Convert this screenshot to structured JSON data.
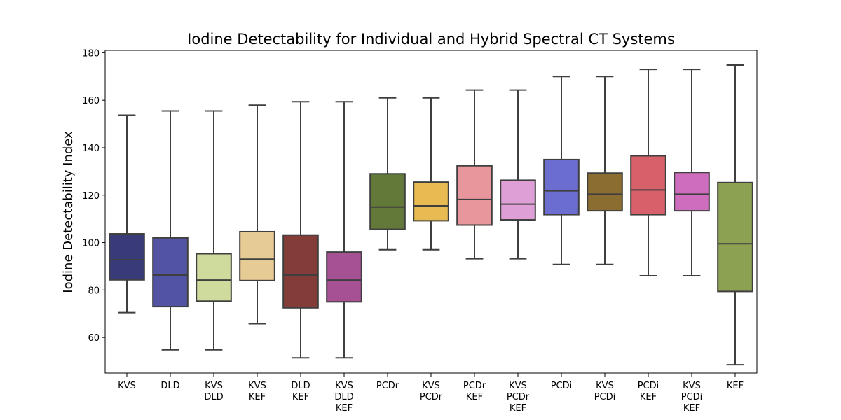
{
  "chart_data": {
    "type": "box",
    "title": "Iodine Detectability for Individual and Hybrid Spectral CT Systems",
    "xlabel": "",
    "ylabel": "Iodine Detectability Index",
    "ylim": [
      45,
      181
    ],
    "yticks": [
      60,
      80,
      100,
      120,
      140,
      160,
      180
    ],
    "grid": false,
    "boxes": [
      {
        "label": [
          "KVS"
        ],
        "whislo": 70.5,
        "q1": 84.3,
        "med": 92.8,
        "q3": 103.7,
        "whishi": 153.7,
        "color": "#393b79"
      },
      {
        "label": [
          "DLD"
        ],
        "whislo": 54.8,
        "q1": 73.0,
        "med": 86.3,
        "q3": 102.0,
        "whishi": 155.5,
        "color": "#5254a3"
      },
      {
        "label": [
          "KVS",
          "DLD"
        ],
        "whislo": 54.8,
        "q1": 75.3,
        "med": 84.2,
        "q3": 95.3,
        "whishi": 155.5,
        "color": "#cedb9c"
      },
      {
        "label": [
          "KVS",
          "KEF"
        ],
        "whislo": 65.8,
        "q1": 84.0,
        "med": 93.0,
        "q3": 104.6,
        "whishi": 157.9,
        "color": "#e7cb94"
      },
      {
        "label": [
          "DLD",
          "KEF"
        ],
        "whislo": 51.4,
        "q1": 72.5,
        "med": 86.3,
        "q3": 103.2,
        "whishi": 159.4,
        "color": "#843c39"
      },
      {
        "label": [
          "KVS",
          "DLD",
          "KEF"
        ],
        "whislo": 51.4,
        "q1": 75.0,
        "med": 84.2,
        "q3": 96.0,
        "whishi": 159.4,
        "color": "#a55194"
      },
      {
        "label": [
          "PCDr"
        ],
        "whislo": 97.0,
        "q1": 105.6,
        "med": 115.0,
        "q3": 129.0,
        "whishi": 161.0,
        "color": "#637939"
      },
      {
        "label": [
          "KVS",
          "PCDr"
        ],
        "whislo": 97.0,
        "q1": 109.2,
        "med": 115.5,
        "q3": 125.5,
        "whishi": 161.0,
        "color": "#e7ba52"
      },
      {
        "label": [
          "PCDr",
          "KEF"
        ],
        "whislo": 93.2,
        "q1": 107.4,
        "med": 118.2,
        "q3": 132.4,
        "whishi": 164.3,
        "color": "#e7969c"
      },
      {
        "label": [
          "KVS",
          "PCDr",
          "KEF"
        ],
        "whislo": 93.2,
        "q1": 109.6,
        "med": 116.2,
        "q3": 126.3,
        "whishi": 164.3,
        "color": "#de9ed6"
      },
      {
        "label": [
          "PCDi"
        ],
        "whislo": 90.8,
        "q1": 111.8,
        "med": 121.8,
        "q3": 135.0,
        "whishi": 170.0,
        "color": "#6b6ecf"
      },
      {
        "label": [
          "KVS",
          "PCDi"
        ],
        "whislo": 90.8,
        "q1": 113.4,
        "med": 120.4,
        "q3": 129.3,
        "whishi": 170.0,
        "color": "#8c6d31"
      },
      {
        "label": [
          "PCDi",
          "KEF"
        ],
        "whislo": 86.0,
        "q1": 111.8,
        "med": 122.2,
        "q3": 136.6,
        "whishi": 173.0,
        "color": "#d6616b"
      },
      {
        "label": [
          "KVS",
          "PCDi",
          "KEF"
        ],
        "whislo": 86.0,
        "q1": 113.4,
        "med": 120.4,
        "q3": 129.6,
        "whishi": 173.0,
        "color": "#ce6dbd"
      },
      {
        "label": [
          "KEF"
        ],
        "whislo": 48.5,
        "q1": 79.4,
        "med": 99.5,
        "q3": 125.3,
        "whishi": 174.8,
        "color": "#8ca252"
      }
    ]
  }
}
